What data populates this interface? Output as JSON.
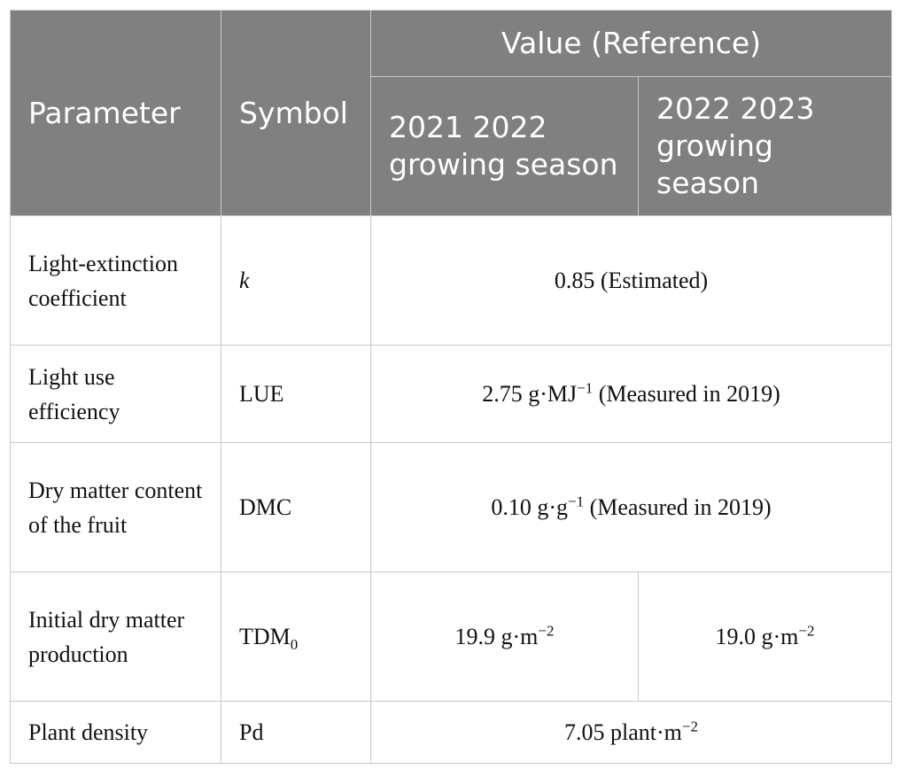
{
  "header": {
    "parameter": "Parameter",
    "symbol": "Symbol",
    "value_group": "Value (Reference)",
    "season_1": "2021   2022 growing season",
    "season_2": "2022   2023 growing season"
  },
  "rows": [
    {
      "parameter": "Light-extinction coefficient",
      "symbol": "k",
      "value": "0.85 (Estimated)"
    },
    {
      "parameter": "Light use efficiency",
      "symbol": "LUE",
      "value_prefix": "2.75 g·MJ",
      "value_exp": "−1",
      "value_suffix": " (Measured in 2019)"
    },
    {
      "parameter": "Dry matter content of the fruit",
      "symbol": "DMC",
      "value_prefix": "0.10 g·g",
      "value_exp": "−1",
      "value_suffix": " (Measured in 2019)"
    },
    {
      "parameter": "Initial dry matter production",
      "symbol_base": "TDM",
      "symbol_sub": "0",
      "value_1_prefix": "19.9 g·m",
      "value_1_exp": "−2",
      "value_2_prefix": "19.0 g·m",
      "value_2_exp": "−2"
    },
    {
      "parameter": "Plant density",
      "symbol": "Pd",
      "value_prefix": "7.05 plant·m",
      "value_exp": "−2"
    }
  ]
}
